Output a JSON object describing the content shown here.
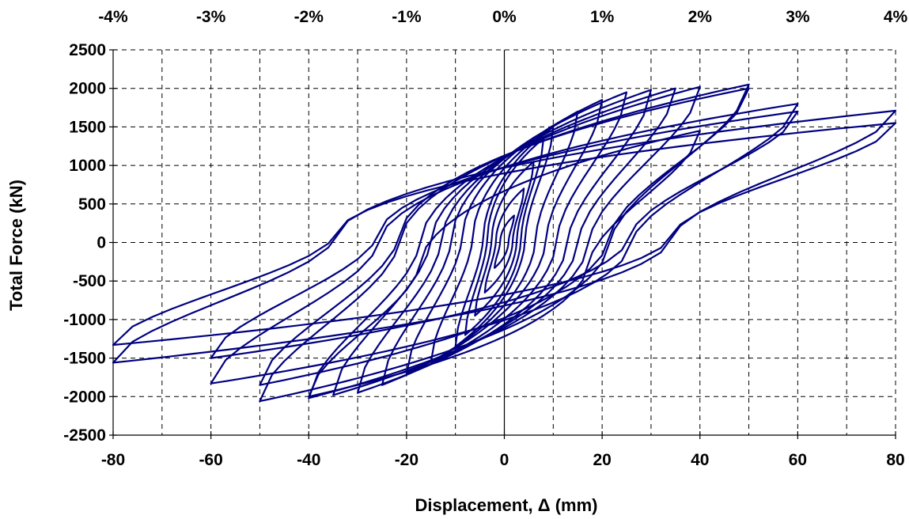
{
  "chart_data": {
    "type": "line",
    "xlabel": "Displacement, Δ (mm)",
    "ylabel": "Total Force (kN)",
    "xlim": [
      -80,
      80
    ],
    "ylim": [
      -2500,
      2500
    ],
    "grid": true,
    "legend": "none",
    "x_ticks": [
      "-80",
      "-60",
      "-40",
      "-20",
      "0",
      "20",
      "40",
      "60",
      "80"
    ],
    "y_ticks": [
      "2500",
      "2000",
      "1500",
      "1000",
      "500",
      "0",
      "-500",
      "-1000",
      "-1500",
      "-2000",
      "-2500"
    ],
    "top_axis": {
      "ticks": [
        "-4%",
        "-3%",
        "-2%",
        "-1%",
        "0%",
        "1%",
        "2%",
        "3%",
        "4%"
      ],
      "ratio_values": [
        -4,
        -3,
        -2,
        -1,
        0,
        1,
        2,
        3,
        4
      ]
    },
    "series_color": "#000080",
    "cycles": [
      {
        "amp": 2,
        "fmax": 350,
        "fmin": -330
      },
      {
        "amp": 4,
        "fmax": 700,
        "fmin": -650
      },
      {
        "amp": 6,
        "fmax": 1050,
        "fmin": -950
      },
      {
        "amp": 8,
        "fmax": 1350,
        "fmin": -1200
      },
      {
        "amp": 10,
        "fmax": 1500,
        "fmin": -1350
      },
      {
        "amp": 15,
        "fmax": 1700,
        "fmin": -1550
      },
      {
        "amp": 20,
        "fmax": 1850,
        "fmin": -1700
      },
      {
        "amp": 25,
        "fmax": 1950,
        "fmin": -1850
      },
      {
        "amp": 30,
        "fmax": 1980,
        "fmin": -1950
      },
      {
        "amp": 35,
        "fmax": 2000,
        "fmin": -1980
      },
      {
        "amp": 40,
        "fmax": 2020,
        "fmin": -2020
      },
      {
        "amp": 40,
        "fmax": 1450,
        "fmin": -2000
      },
      {
        "amp": 50,
        "fmax": 2050,
        "fmin": -2060
      },
      {
        "amp": 50,
        "fmax": 2000,
        "fmin": -1850
      },
      {
        "amp": 60,
        "fmax": 1800,
        "fmin": -1830
      },
      {
        "amp": 60,
        "fmax": 1700,
        "fmin": -1500
      },
      {
        "amp": 80,
        "fmax": 1710,
        "fmin": -1560
      },
      {
        "amp": 80,
        "fmax": 1550,
        "fmin": -1330
      }
    ]
  }
}
